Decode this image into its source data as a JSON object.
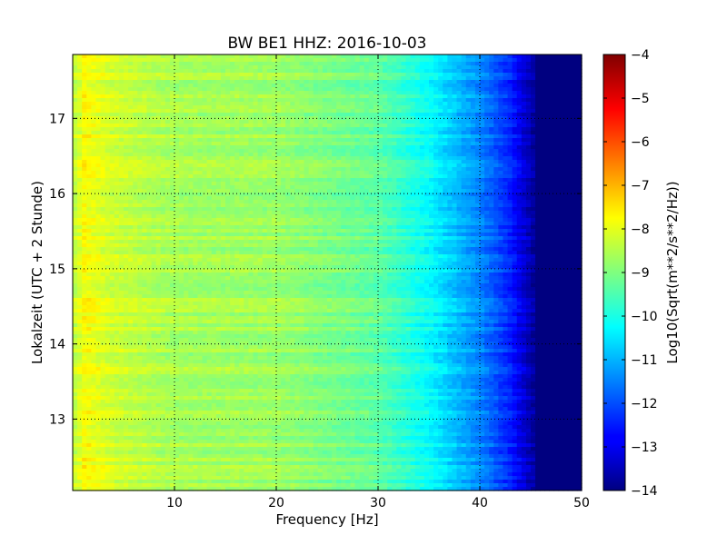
{
  "chart_data": {
    "type": "heatmap",
    "title": "BW BE1 HHZ: 2016-10-03",
    "xlabel": "Frequency [Hz]",
    "ylabel": "Lokalzeit (UTC + 2 Stunde)",
    "xlim": [
      0,
      50
    ],
    "ylim": [
      17.85,
      12.05
    ],
    "x_ticks": [
      10,
      20,
      30,
      40,
      50
    ],
    "y_ticks": [
      13,
      14,
      15,
      16,
      17
    ],
    "grid": true,
    "colormap": "jet",
    "colorbar": {
      "label": "Log10(Sqrt(m**2/s**2/Hz))",
      "range": [
        -14,
        -4
      ],
      "ticks": [
        -4,
        -5,
        -6,
        -7,
        -8,
        -9,
        -10,
        -11,
        -12,
        -13,
        -14
      ]
    },
    "spectrum_profile": {
      "frequency_hz": [
        0.5,
        1,
        2,
        4,
        10,
        20,
        30,
        35,
        40,
        43,
        45,
        46,
        50
      ],
      "log10_amplitude": [
        -8.3,
        -7.7,
        -7.9,
        -8.2,
        -8.6,
        -8.7,
        -9.3,
        -10.2,
        -11.4,
        -12.4,
        -13.5,
        -14,
        -14
      ]
    },
    "bright_bands_hours": [
      12.6,
      13.0,
      14.2,
      14.45,
      15.2,
      16.2,
      16.3,
      16.95,
      17.1
    ]
  }
}
